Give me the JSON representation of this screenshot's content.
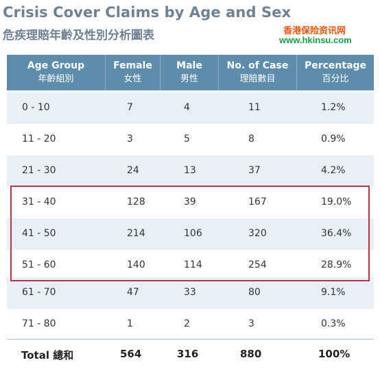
{
  "title_en": "Crisis Cover Claims by Age and Sex",
  "title_zh": "危疾理賠年齡及性別分析圖表",
  "watermark": {
    "zh": "香港保险资讯网",
    "url": "www.hkinsu.com"
  },
  "headers": [
    {
      "en": "Age Group",
      "zh": "年齡組別"
    },
    {
      "en": "Female",
      "zh": "女性"
    },
    {
      "en": "Male",
      "zh": "男性"
    },
    {
      "en": "No. of Case",
      "zh": "理賠數目"
    },
    {
      "en": "Percentage",
      "zh": "百分比"
    }
  ],
  "rows": [
    {
      "age": "0 - 10",
      "female": "7",
      "male": "4",
      "cases": "11",
      "pct": "1.2%"
    },
    {
      "age": "11 - 20",
      "female": "3",
      "male": "5",
      "cases": "8",
      "pct": "0.9%"
    },
    {
      "age": "21 - 30",
      "female": "24",
      "male": "13",
      "cases": "37",
      "pct": "4.2%"
    },
    {
      "age": "31 - 40",
      "female": "128",
      "male": "39",
      "cases": "167",
      "pct": "19.0%"
    },
    {
      "age": "41 - 50",
      "female": "214",
      "male": "106",
      "cases": "320",
      "pct": "36.4%"
    },
    {
      "age": "51 - 60",
      "female": "140",
      "male": "114",
      "cases": "254",
      "pct": "28.9%"
    },
    {
      "age": "61 - 70",
      "female": "47",
      "male": "33",
      "cases": "80",
      "pct": "9.1%"
    },
    {
      "age": "71 - 80",
      "female": "1",
      "male": "2",
      "cases": "3",
      "pct": "0.3%"
    }
  ],
  "total": {
    "label": "Total 總和",
    "female": "564",
    "male": "316",
    "cases": "880",
    "pct": "100%"
  },
  "colors": {
    "header_bg": "#5e8cab",
    "row_shade": "#e9f0f5",
    "highlight_border": "#b8323f",
    "title": "#6f8293"
  }
}
